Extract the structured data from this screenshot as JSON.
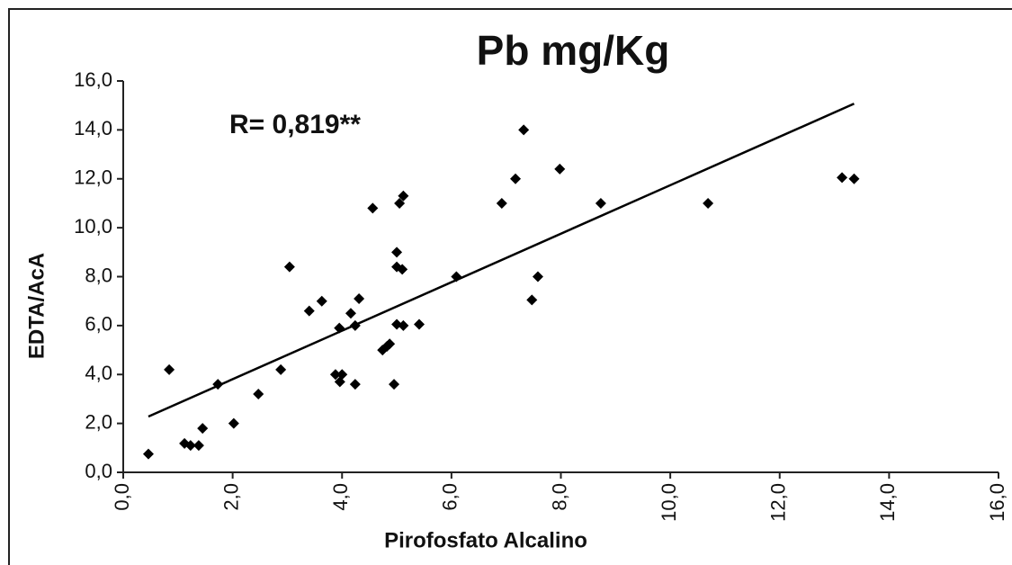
{
  "chart_data": {
    "type": "scatter",
    "title": "Pb   mg/Kg",
    "annotation": "R= 0,819**",
    "x_label": "Pirofosfato Alcalino",
    "y_label": "EDTA/AcA",
    "series": [
      {
        "color": "#000000",
        "x": [
          0.46,
          0.84,
          1.12,
          1.23,
          1.38,
          1.45,
          1.73,
          2.02,
          2.47,
          2.88,
          3.04,
          3.4,
          3.63,
          3.88,
          3.95,
          3.96,
          4.0,
          4.16,
          4.24,
          4.24,
          4.31,
          4.56,
          4.74,
          4.82,
          4.87,
          4.95,
          5.0,
          5.0,
          5.0,
          5.05,
          5.12,
          5.1,
          5.12,
          5.41,
          6.09,
          6.92,
          7.17,
          7.32,
          7.47,
          7.58,
          7.98,
          8.73,
          10.69,
          13.14,
          13.36
        ],
        "values": [
          0.75,
          4.2,
          1.18,
          1.1,
          1.1,
          1.8,
          3.6,
          2.0,
          3.2,
          4.2,
          8.4,
          6.6,
          7.0,
          4.0,
          5.9,
          3.7,
          4.0,
          6.5,
          6.0,
          3.6,
          7.1,
          10.8,
          5.0,
          5.15,
          5.25,
          3.6,
          9.0,
          8.4,
          6.05,
          11.0,
          11.3,
          8.3,
          6.0,
          6.05,
          8.0,
          11.0,
          12.0,
          14.0,
          7.05,
          8.0,
          12.4,
          11.0,
          11.0,
          12.05,
          12.0
        ]
      }
    ],
    "trendline": {
      "color": "#000000",
      "x": [
        0.46,
        13.36
      ],
      "values": [
        2.28,
        15.07
      ]
    },
    "xlim": [
      0,
      16
    ],
    "ylim": [
      0,
      16
    ],
    "xticks": [
      {
        "value": 0,
        "label": "0,0"
      },
      {
        "value": 2,
        "label": "2,0"
      },
      {
        "value": 4,
        "label": "4,0"
      },
      {
        "value": 6,
        "label": "6,0"
      },
      {
        "value": 8,
        "label": "8,0"
      },
      {
        "value": 10,
        "label": "10,0"
      },
      {
        "value": 12,
        "label": "12,0"
      },
      {
        "value": 14,
        "label": "14,0"
      },
      {
        "value": 16,
        "label": "16,0"
      }
    ],
    "yticks": [
      {
        "value": 0,
        "label": "0,0"
      },
      {
        "value": 2,
        "label": "2,0"
      },
      {
        "value": 4,
        "label": "4,0"
      },
      {
        "value": 6,
        "label": "6,0"
      },
      {
        "value": 8,
        "label": "8,0"
      },
      {
        "value": 10,
        "label": "10,0"
      },
      {
        "value": 12,
        "label": "12,0"
      },
      {
        "value": 14,
        "label": "14,0"
      },
      {
        "value": 16,
        "label": "16,0"
      }
    ],
    "grid": false
  }
}
